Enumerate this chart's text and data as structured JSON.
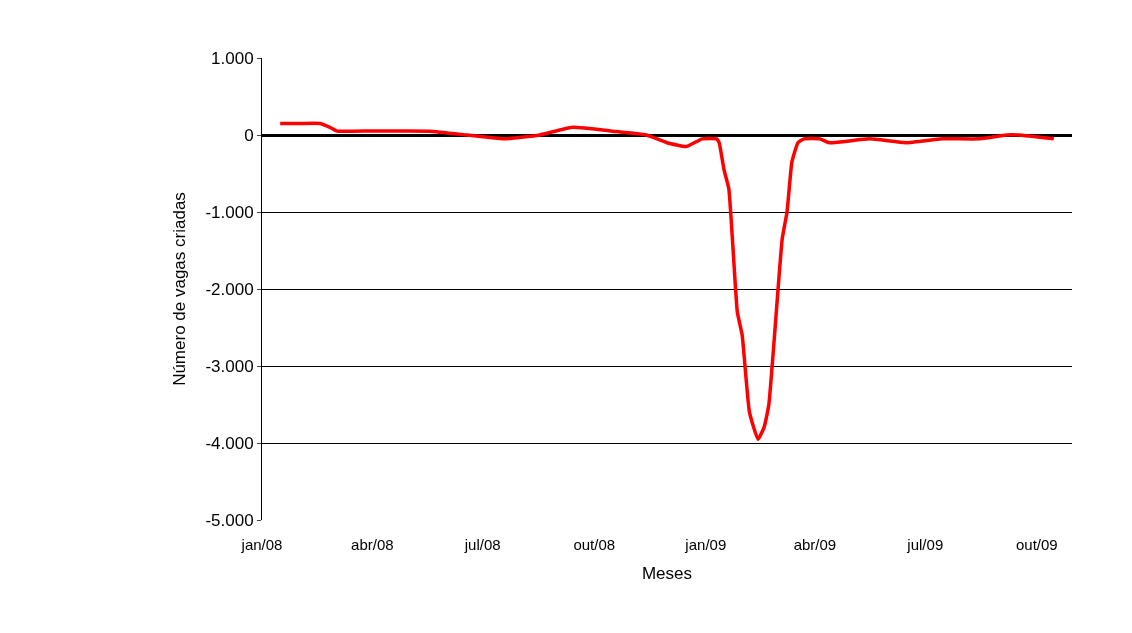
{
  "chart_data": {
    "type": "line",
    "xlabel": "Meses",
    "ylabel": "Número de vagas criadas",
    "x": [
      "2008-01-16",
      "2008-02-01",
      "2008-02-18",
      "2008-02-26",
      "2008-03-03",
      "2008-03-16",
      "2008-05-18",
      "2008-06-18",
      "2008-07-18",
      "2008-08-17",
      "2008-09-13",
      "2008-10-16",
      "2008-11-13",
      "2008-11-30",
      "2008-12-16",
      "2008-12-29",
      "2009-01-10",
      "2009-01-12",
      "2009-01-16",
      "2009-01-20",
      "2009-01-27",
      "2009-01-31",
      "2009-02-06",
      "2009-02-13",
      "2009-02-18",
      "2009-02-22",
      "2009-03-05",
      "2009-03-09",
      "2009-03-13",
      "2009-03-18",
      "2009-03-23",
      "2009-04-05",
      "2009-04-13",
      "2009-05-16",
      "2009-06-15",
      "2009-07-15",
      "2009-08-14",
      "2009-09-06",
      "2009-09-16",
      "2009-10-15"
    ],
    "series": [
      {
        "color": "#ff0000",
        "values": [
          150,
          150,
          150,
          100,
          50,
          50,
          50,
          0,
          -50,
          0,
          100,
          50,
          0,
          -100,
          -150,
          -50,
          -50,
          -100,
          -450,
          -700,
          -2300,
          -2600,
          -3600,
          -3950,
          -3800,
          -3500,
          -1350,
          -1000,
          -350,
          -100,
          -50,
          -50,
          -100,
          -50,
          -100,
          -50,
          -50,
          0,
          0,
          -50
        ]
      }
    ],
    "xlim": [
      "2008-01-01",
      "2009-10-30"
    ],
    "xticks": [
      {
        "value": "2008-01-01",
        "label": "jan/08"
      },
      {
        "value": "2008-04-01",
        "label": "abr/08"
      },
      {
        "value": "2008-07-01",
        "label": "jul/08"
      },
      {
        "value": "2008-10-01",
        "label": "out/08"
      },
      {
        "value": "2009-01-01",
        "label": "jan/09"
      },
      {
        "value": "2009-04-01",
        "label": "abr/09"
      },
      {
        "value": "2009-07-01",
        "label": "jul/09"
      },
      {
        "value": "2009-10-01",
        "label": "out/09"
      }
    ],
    "ylim": [
      -5000,
      1000
    ],
    "yticks": [
      {
        "value": -5000,
        "label": "-5.000"
      },
      {
        "value": -4000,
        "label": "-4.000"
      },
      {
        "value": -3000,
        "label": "-3.000"
      },
      {
        "value": -2000,
        "label": "-2.000"
      },
      {
        "value": -1000,
        "label": "-1.000"
      },
      {
        "value": 0,
        "label": "0"
      },
      {
        "value": 1000,
        "label": "1.000"
      }
    ],
    "grid": "y",
    "marker": "none",
    "line_style": "solid"
  }
}
